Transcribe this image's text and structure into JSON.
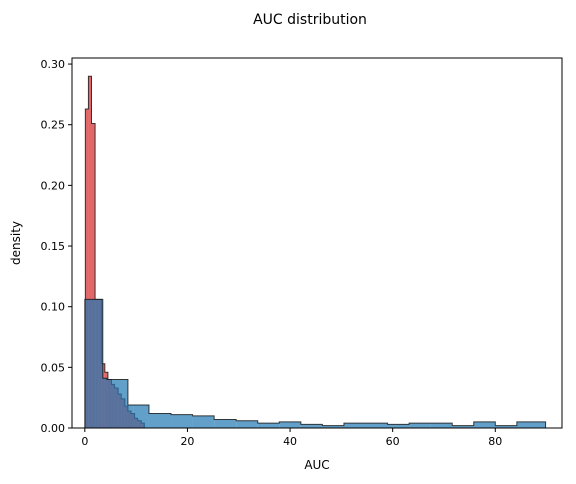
{
  "chart_data": {
    "type": "histogram",
    "title": "AUC distribution",
    "xlabel": "AUC",
    "ylabel": "density",
    "xlim": [
      -2.5,
      93
    ],
    "ylim": [
      0,
      0.305
    ],
    "xticks": [
      0,
      20,
      40,
      60,
      80
    ],
    "xtick_labels": [
      "0",
      "20",
      "40",
      "60",
      "80"
    ],
    "yticks": [
      0,
      0.05,
      0.1,
      0.15,
      0.2,
      0.25,
      0.3
    ],
    "ytick_labels": [
      "0.00",
      "0.05",
      "0.10",
      "0.15",
      "0.20",
      "0.25",
      "0.30"
    ],
    "grid": false,
    "legend": "none",
    "colors": {
      "red": "#d62728",
      "blue": "#1f77b4",
      "edge": "#1a1a1a"
    },
    "series": [
      {
        "color": "#d62728",
        "edges": [
          0.1,
          0.7,
          1.3,
          2.0,
          2.6,
          3.3,
          3.9,
          4.5,
          5.2,
          5.8,
          6.5,
          7.1,
          7.8,
          8.4,
          9.0,
          9.7,
          10.3,
          11.0,
          11.6,
          12.3
        ],
        "values": [
          0.263,
          0.29,
          0.251,
          0.106,
          0.106,
          0.053,
          0.046,
          0.04,
          0.036,
          0.033,
          0.028,
          0.024,
          0.018,
          0.014,
          0.012,
          0.008,
          0.006,
          0.004,
          0.0
        ]
      },
      {
        "color": "#1f77b4",
        "edges": [
          0.0,
          3.5,
          4.3,
          8.4,
          9.5,
          12.5,
          16.8,
          21.0,
          25.2,
          29.5,
          33.7,
          37.9,
          42.1,
          46.3,
          50.5,
          54.8,
          59.0,
          63.2,
          67.4,
          71.6,
          75.8,
          80.0,
          84.2,
          89.8
        ],
        "values": [
          0.106,
          0.041,
          0.04,
          0.019,
          0.019,
          0.012,
          0.011,
          0.01,
          0.007,
          0.006,
          0.004,
          0.005,
          0.003,
          0.002,
          0.004,
          0.004,
          0.003,
          0.004,
          0.004,
          0.002,
          0.005,
          0.002,
          0.005
        ]
      }
    ]
  }
}
